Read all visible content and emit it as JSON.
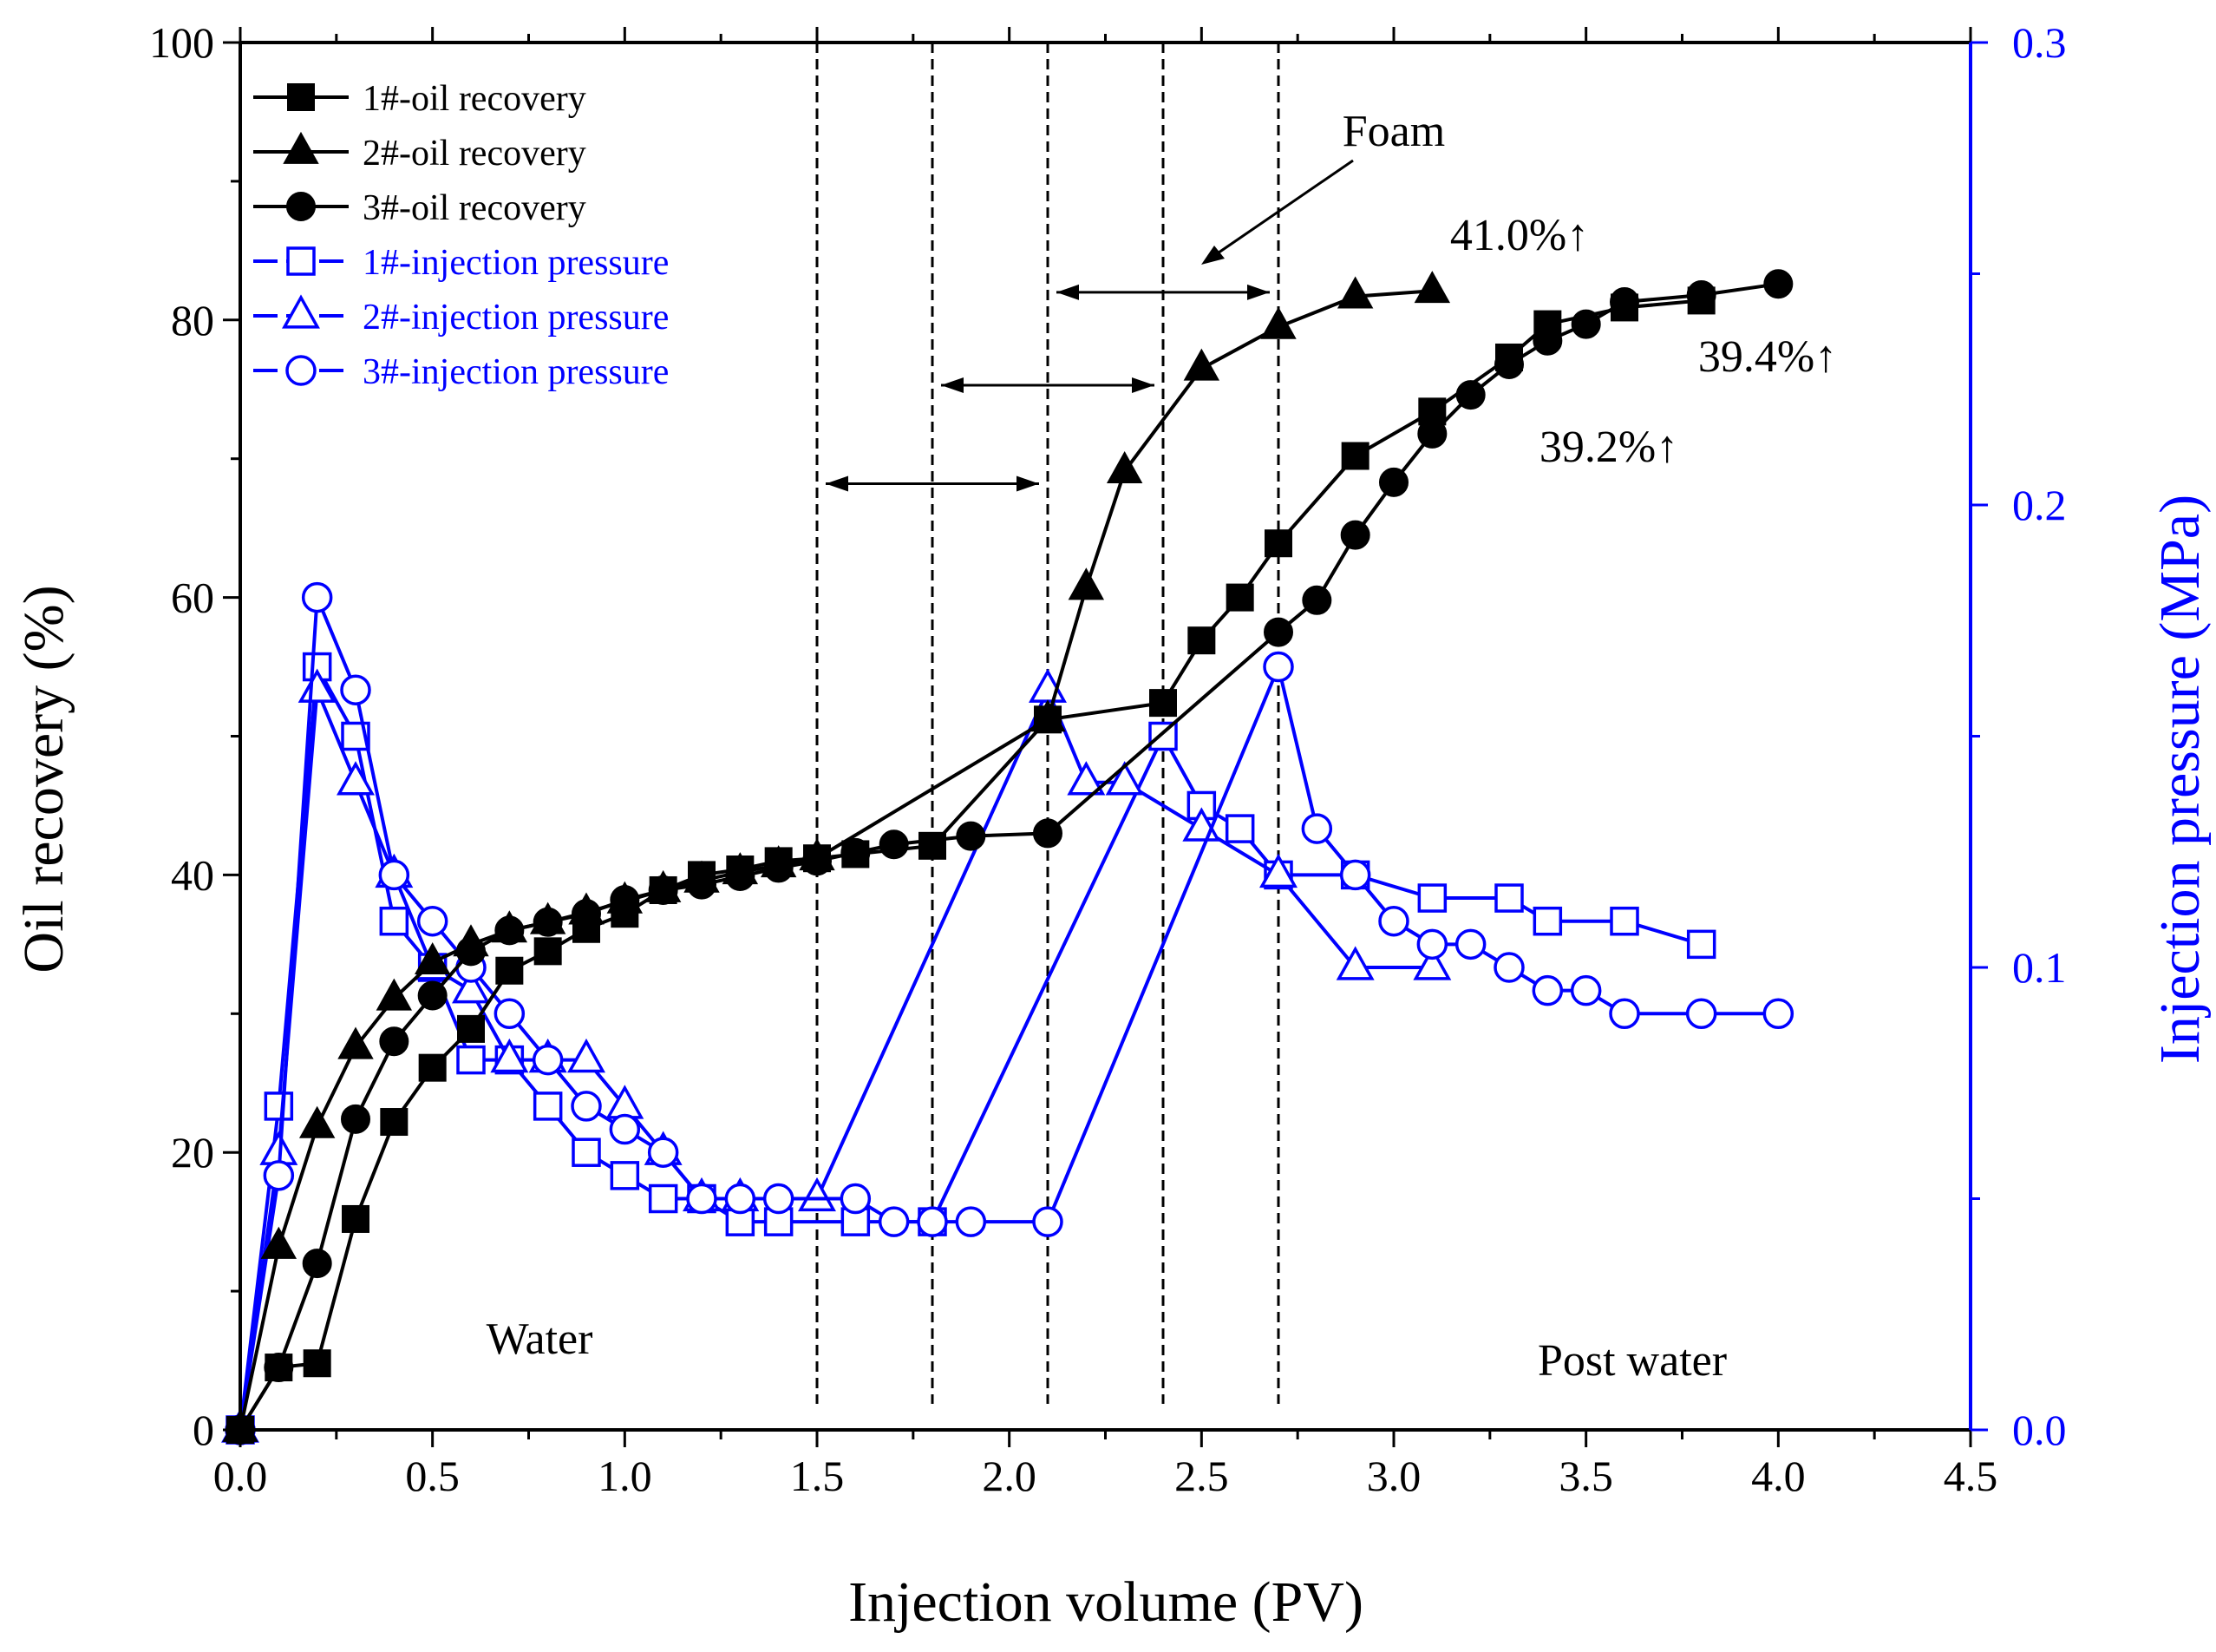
{
  "chart_data": {
    "type": "line",
    "xlabel": "Injection volume (PV)",
    "ylabel": "Oil recovery (%)",
    "y2label": "Injection pressure (MPa)",
    "xlim": [
      0,
      4.5
    ],
    "ylim": [
      0,
      100
    ],
    "y2lim": [
      0,
      0.3
    ],
    "grid": false,
    "legend_position": "top-left",
    "x_ticks": [
      "0.0",
      "0.5",
      "1.0",
      "1.5",
      "2.0",
      "2.5",
      "3.0",
      "3.5",
      "4.0",
      "4.5"
    ],
    "y_ticks": [
      "0",
      "20",
      "40",
      "60",
      "80",
      "100"
    ],
    "y2_ticks": [
      "0.0",
      "0.1",
      "0.2",
      "0.3"
    ],
    "phase_lines_x": [
      1.5,
      1.8,
      2.1,
      2.4,
      2.7
    ],
    "colors": {
      "recovery": "#000000",
      "pressure": "#0000ff"
    },
    "series": [
      {
        "name": "1#-oil recovery",
        "axis": "left",
        "marker": "square",
        "filled": true,
        "points": [
          [
            0,
            0
          ],
          [
            0.1,
            4.5
          ],
          [
            0.2,
            4.8
          ],
          [
            0.3,
            15.2
          ],
          [
            0.4,
            22.2
          ],
          [
            0.5,
            26.1
          ],
          [
            0.6,
            28.9
          ],
          [
            0.7,
            33.1
          ],
          [
            0.8,
            34.5
          ],
          [
            0.9,
            36.1
          ],
          [
            1.0,
            37.2
          ],
          [
            1.1,
            38.9
          ],
          [
            1.2,
            40.0
          ],
          [
            1.3,
            40.4
          ],
          [
            1.4,
            41.0
          ],
          [
            1.5,
            41.2
          ],
          [
            1.6,
            41.5
          ],
          [
            1.8,
            42.1
          ],
          [
            2.1,
            51.2
          ],
          [
            2.4,
            52.4
          ],
          [
            2.5,
            56.9
          ],
          [
            2.6,
            60.0
          ],
          [
            2.7,
            63.9
          ],
          [
            2.9,
            70.2
          ],
          [
            3.1,
            73.4
          ],
          [
            3.3,
            77.3
          ],
          [
            3.4,
            79.7
          ],
          [
            3.6,
            80.9
          ],
          [
            3.8,
            81.4
          ]
        ]
      },
      {
        "name": "2#-oil recovery",
        "axis": "left",
        "marker": "triangle",
        "filled": true,
        "points": [
          [
            0,
            0
          ],
          [
            0.1,
            13.2
          ],
          [
            0.2,
            21.9
          ],
          [
            0.3,
            27.6
          ],
          [
            0.4,
            31.1
          ],
          [
            0.5,
            33.7
          ],
          [
            0.6,
            35.0
          ],
          [
            0.7,
            36.0
          ],
          [
            0.8,
            36.6
          ],
          [
            0.9,
            37.3
          ],
          [
            1.0,
            38.1
          ],
          [
            1.1,
            38.9
          ],
          [
            1.2,
            39.6
          ],
          [
            1.3,
            40.2
          ],
          [
            1.4,
            40.7
          ],
          [
            1.5,
            41.2
          ],
          [
            2.1,
            51.2
          ],
          [
            2.2,
            60.7
          ],
          [
            2.3,
            69.1
          ],
          [
            2.5,
            76.5
          ],
          [
            2.7,
            79.5
          ],
          [
            2.9,
            81.7
          ],
          [
            3.1,
            82.1
          ]
        ]
      },
      {
        "name": "3#-oil recovery",
        "axis": "left",
        "marker": "circle",
        "filled": true,
        "points": [
          [
            0,
            0
          ],
          [
            0.1,
            4.5
          ],
          [
            0.2,
            12.0
          ],
          [
            0.3,
            22.4
          ],
          [
            0.4,
            28.0
          ],
          [
            0.5,
            31.3
          ],
          [
            0.6,
            34.5
          ],
          [
            0.7,
            36.0
          ],
          [
            0.8,
            36.6
          ],
          [
            0.9,
            37.2
          ],
          [
            1.0,
            38.2
          ],
          [
            1.1,
            38.9
          ],
          [
            1.2,
            39.3
          ],
          [
            1.3,
            39.9
          ],
          [
            1.4,
            40.5
          ],
          [
            1.5,
            41.0
          ],
          [
            1.6,
            41.6
          ],
          [
            1.7,
            42.2
          ],
          [
            1.9,
            42.8
          ],
          [
            2.1,
            43.0
          ],
          [
            2.7,
            57.5
          ],
          [
            2.8,
            59.8
          ],
          [
            2.9,
            64.5
          ],
          [
            3.0,
            68.3
          ],
          [
            3.1,
            71.8
          ],
          [
            3.2,
            74.6
          ],
          [
            3.3,
            76.8
          ],
          [
            3.4,
            78.5
          ],
          [
            3.5,
            79.7
          ],
          [
            3.6,
            81.3
          ],
          [
            3.8,
            81.8
          ],
          [
            4.0,
            82.6
          ]
        ]
      },
      {
        "name": "1#-injection pressure",
        "axis": "right",
        "marker": "square",
        "filled": false,
        "points": [
          [
            0,
            0
          ],
          [
            0.1,
            0.07
          ],
          [
            0.2,
            0.165
          ],
          [
            0.3,
            0.15
          ],
          [
            0.4,
            0.11
          ],
          [
            0.5,
            0.1
          ],
          [
            0.6,
            0.08
          ],
          [
            0.7,
            0.08
          ],
          [
            0.8,
            0.07
          ],
          [
            0.9,
            0.06
          ],
          [
            1.0,
            0.055
          ],
          [
            1.1,
            0.05
          ],
          [
            1.2,
            0.05
          ],
          [
            1.3,
            0.045
          ],
          [
            1.4,
            0.045
          ],
          [
            1.6,
            0.045
          ],
          [
            1.8,
            0.045
          ],
          [
            2.4,
            0.15
          ],
          [
            2.5,
            0.135
          ],
          [
            2.6,
            0.13
          ],
          [
            2.7,
            0.12
          ],
          [
            2.9,
            0.12
          ],
          [
            3.1,
            0.115
          ],
          [
            3.3,
            0.115
          ],
          [
            3.4,
            0.11
          ],
          [
            3.6,
            0.11
          ],
          [
            3.8,
            0.105
          ]
        ]
      },
      {
        "name": "2#-injection pressure",
        "axis": "right",
        "marker": "triangle",
        "filled": false,
        "points": [
          [
            0,
            0
          ],
          [
            0.1,
            0.06
          ],
          [
            0.2,
            0.16
          ],
          [
            0.3,
            0.14
          ],
          [
            0.4,
            0.12
          ],
          [
            0.5,
            0.1
          ],
          [
            0.6,
            0.095
          ],
          [
            0.7,
            0.08
          ],
          [
            0.8,
            0.08
          ],
          [
            0.9,
            0.08
          ],
          [
            1.0,
            0.07
          ],
          [
            1.1,
            0.06
          ],
          [
            1.2,
            0.05
          ],
          [
            1.3,
            0.05
          ],
          [
            1.5,
            0.05
          ],
          [
            2.1,
            0.16
          ],
          [
            2.2,
            0.14
          ],
          [
            2.3,
            0.14
          ],
          [
            2.5,
            0.13
          ],
          [
            2.7,
            0.12
          ],
          [
            2.9,
            0.1
          ],
          [
            3.1,
            0.1
          ]
        ]
      },
      {
        "name": "3#-injection pressure",
        "axis": "right",
        "marker": "circle",
        "filled": false,
        "points": [
          [
            0,
            0
          ],
          [
            0.1,
            0.055
          ],
          [
            0.2,
            0.18
          ],
          [
            0.3,
            0.16
          ],
          [
            0.4,
            0.12
          ],
          [
            0.5,
            0.11
          ],
          [
            0.6,
            0.1
          ],
          [
            0.7,
            0.09
          ],
          [
            0.8,
            0.08
          ],
          [
            0.9,
            0.07
          ],
          [
            1.0,
            0.065
          ],
          [
            1.1,
            0.06
          ],
          [
            1.2,
            0.05
          ],
          [
            1.3,
            0.05
          ],
          [
            1.4,
            0.05
          ],
          [
            1.6,
            0.05
          ],
          [
            1.7,
            0.045
          ],
          [
            1.8,
            0.045
          ],
          [
            1.9,
            0.045
          ],
          [
            2.1,
            0.045
          ],
          [
            2.7,
            0.165
          ],
          [
            2.8,
            0.13
          ],
          [
            2.9,
            0.12
          ],
          [
            3.0,
            0.11
          ],
          [
            3.1,
            0.105
          ],
          [
            3.2,
            0.105
          ],
          [
            3.3,
            0.1
          ],
          [
            3.4,
            0.095
          ],
          [
            3.5,
            0.095
          ],
          [
            3.6,
            0.09
          ],
          [
            3.8,
            0.09
          ],
          [
            4.0,
            0.09
          ]
        ]
      }
    ],
    "annotations": {
      "water": "Water",
      "post_water": "Post water",
      "foam": "Foam",
      "inc_2": "41.0%↑",
      "inc_3": "39.4%↑",
      "inc_1": "39.2%↑"
    },
    "range_arrows": [
      [
        1.5,
        2.1
      ],
      [
        1.8,
        2.4
      ],
      [
        2.1,
        2.7
      ]
    ]
  }
}
